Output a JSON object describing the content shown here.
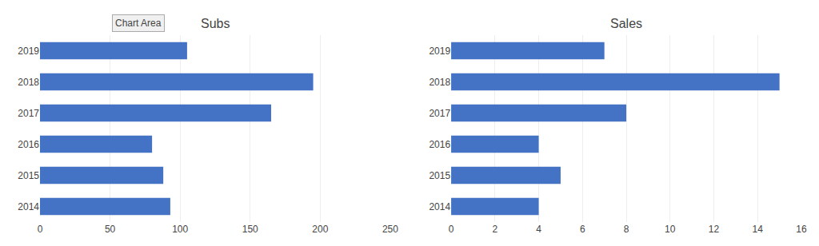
{
  "chart_data": [
    {
      "type": "bar",
      "orientation": "horizontal",
      "title": "Subs",
      "categories": [
        "2019",
        "2018",
        "2017",
        "2016",
        "2015",
        "2014"
      ],
      "values": [
        105,
        195,
        165,
        80,
        88,
        93
      ],
      "color": "#4472C4",
      "xlim": [
        0,
        250
      ],
      "xticks": [
        0,
        50,
        100,
        150,
        200,
        250
      ],
      "grid": true,
      "annotations": [
        "Chart Area"
      ]
    },
    {
      "type": "bar",
      "orientation": "horizontal",
      "title": "Sales",
      "categories": [
        "2019",
        "2018",
        "2017",
        "2016",
        "2015",
        "2014"
      ],
      "values": [
        7,
        15,
        8,
        4,
        5,
        4
      ],
      "color": "#4472C4",
      "xlim": [
        0,
        16
      ],
      "xticks": [
        0,
        2,
        4,
        6,
        8,
        10,
        12,
        14,
        16
      ],
      "grid": true
    }
  ]
}
